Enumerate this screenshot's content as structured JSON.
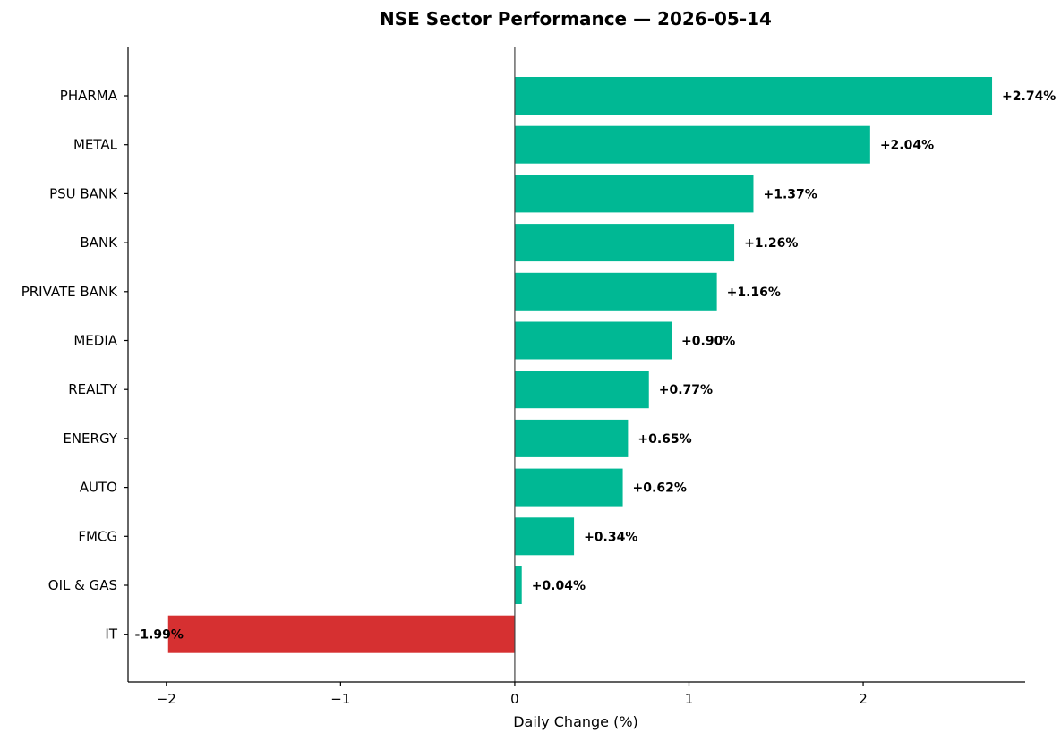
{
  "chart_data": {
    "type": "bar",
    "orientation": "horizontal",
    "title": "NSE Sector Performance — 2026-05-14",
    "xlabel": "Daily Change (%)",
    "ylabel": "",
    "categories": [
      "PHARMA",
      "METAL",
      "PSU BANK",
      "BANK",
      "PRIVATE BANK",
      "MEDIA",
      "REALTY",
      "ENERGY",
      "AUTO",
      "FMCG",
      "OIL & GAS",
      "IT"
    ],
    "values": [
      2.74,
      2.04,
      1.37,
      1.26,
      1.16,
      0.9,
      0.77,
      0.65,
      0.62,
      0.34,
      0.04,
      -1.99
    ],
    "data_labels": [
      "+2.74%",
      "+2.04%",
      "+1.37%",
      "+1.26%",
      "+1.16%",
      "+0.90%",
      "+0.77%",
      "+0.65%",
      "+0.62%",
      "+0.34%",
      "+0.04%",
      "-1.99%"
    ],
    "xlim": [
      -2.22,
      2.93
    ],
    "xticks": [
      -2,
      -1,
      0,
      1,
      2
    ],
    "xtick_labels": [
      "−2",
      "−1",
      "0",
      "1",
      "2"
    ],
    "grid": false,
    "colors": {
      "positive": "#00b894",
      "negative": "#d63031"
    }
  }
}
